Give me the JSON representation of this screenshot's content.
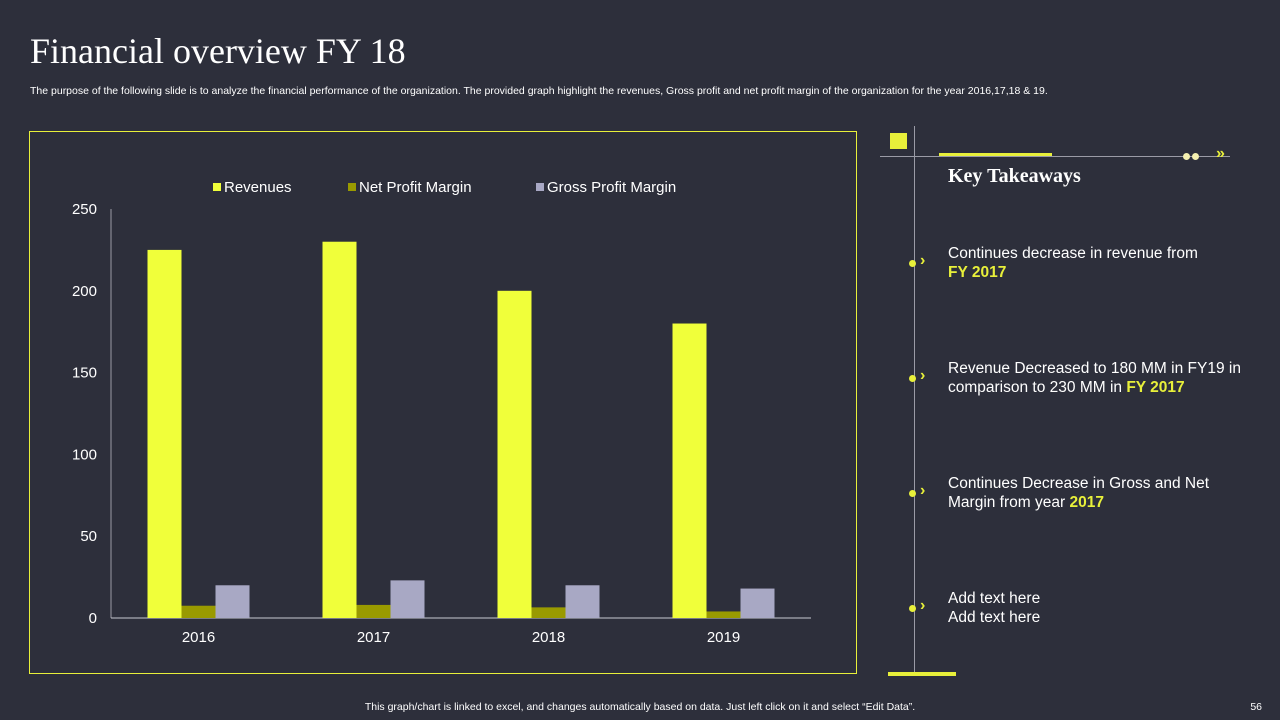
{
  "header": {
    "title": "Financial overview FY 18",
    "subtitle": "The purpose of the following slide is to analyze the financial performance of the organization. The provided graph highlight the revenues, Gross profit and net profit margin of the organization for the year 2016,17,18 & 19."
  },
  "chart_data": {
    "type": "bar",
    "categories": [
      "2016",
      "2017",
      "2018",
      "2019"
    ],
    "series": [
      {
        "name": "Revenues",
        "values": [
          225,
          230,
          200,
          180
        ],
        "color": "#f0ff3a"
      },
      {
        "name": "Net Profit Margin",
        "values": [
          7.5,
          8,
          6.5,
          4
        ],
        "color": "#999a00"
      },
      {
        "name": "Gross Profit Margin",
        "values": [
          20,
          23,
          20,
          18
        ],
        "color": "#a8a8c4"
      }
    ],
    "ylim": [
      0,
      250
    ],
    "yticks": [
      "0",
      "50",
      "100",
      "150",
      "200",
      "250"
    ],
    "legend": "top",
    "grid": false
  },
  "takeaways": {
    "title": "Key Takeaways",
    "items": [
      {
        "text": "Continues decrease in revenue from ",
        "hl": "FY 2017"
      },
      {
        "text": "Revenue Decreased to 180 MM in FY19 in comparison to 230 MM in ",
        "hl": "FY 2017"
      },
      {
        "text": "Continues Decrease in Gross and Net Margin from year ",
        "hl": "2017"
      },
      {
        "text": "Add text here Add text here",
        "hl": ""
      }
    ]
  },
  "footer": {
    "note": "This graph/chart is linked to excel, and changes automatically based on data. Just left click on it and select “Edit Data”.",
    "page": "56"
  }
}
